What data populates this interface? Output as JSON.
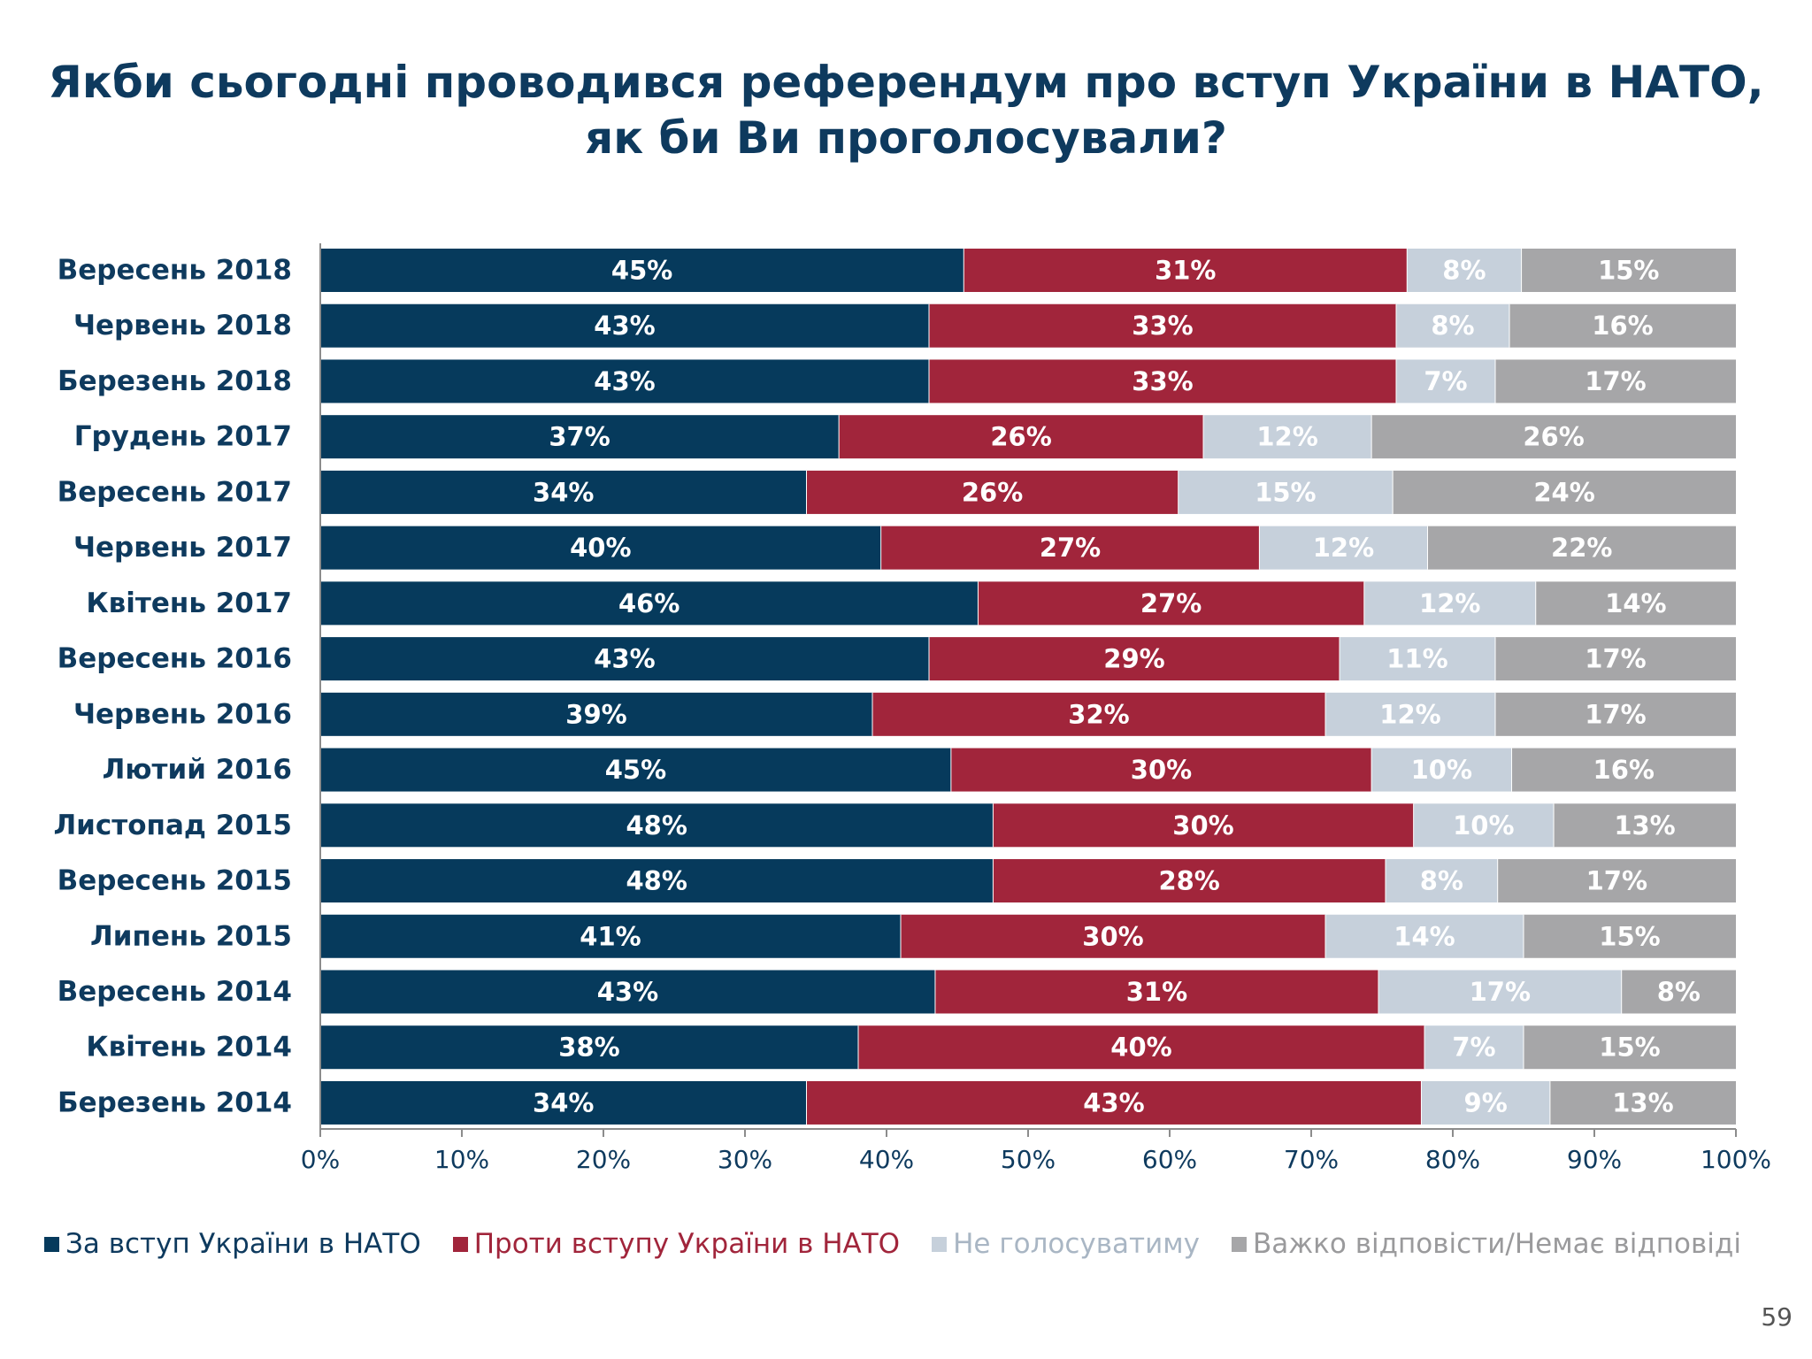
{
  "title": {
    "line1": "Якби сьогодні проводився референдум про вступ України в НАТО,",
    "line2": "як би Ви проголосували?"
  },
  "page_number": "59",
  "colors": {
    "for": "#063a5c",
    "against": "#a1253b",
    "wont_vote": "#c6d0db",
    "hard_to_say": "#a6a6a8",
    "title": "#0e3a5e",
    "label_dark": "#0e3a5e"
  },
  "chart_data": {
    "type": "bar",
    "orientation": "horizontal",
    "stacked": true,
    "percent_axis": true,
    "xlim": [
      0,
      100
    ],
    "x_ticks": [
      "0%",
      "10%",
      "20%",
      "30%",
      "40%",
      "50%",
      "60%",
      "70%",
      "80%",
      "90%",
      "100%"
    ],
    "grid": false,
    "legend_position": "bottom",
    "categories": [
      "Вересень 2018",
      "Червень 2018",
      "Березень 2018",
      "Грудень 2017",
      "Вересень 2017",
      "Червень 2017",
      "Квітень 2017",
      "Вересень 2016",
      "Червень 2016",
      "Лютий 2016",
      "Листопад 2015",
      "Вересень 2015",
      "Липень 2015",
      "Вересень 2014",
      "Квітень 2014",
      "Березень 2014"
    ],
    "series": [
      {
        "name": "За вступ України в НАТО",
        "color_key": "for",
        "values": [
          45,
          43,
          43,
          37,
          34,
          40,
          46,
          43,
          39,
          45,
          48,
          48,
          41,
          43,
          38,
          34
        ]
      },
      {
        "name": "Проти вступу України в НАТО",
        "color_key": "against",
        "values": [
          31,
          33,
          33,
          26,
          26,
          27,
          27,
          29,
          32,
          30,
          30,
          28,
          30,
          31,
          40,
          43
        ]
      },
      {
        "name": "Не голосуватиму",
        "color_key": "wont_vote",
        "values": [
          8,
          8,
          7,
          12,
          15,
          12,
          12,
          11,
          12,
          10,
          10,
          8,
          14,
          17,
          7,
          9
        ]
      },
      {
        "name": "Важко відповісти/Немає відповіді",
        "color_key": "hard_to_say",
        "values": [
          15,
          16,
          17,
          26,
          24,
          22,
          14,
          17,
          17,
          16,
          13,
          17,
          15,
          8,
          15,
          13
        ]
      }
    ]
  }
}
